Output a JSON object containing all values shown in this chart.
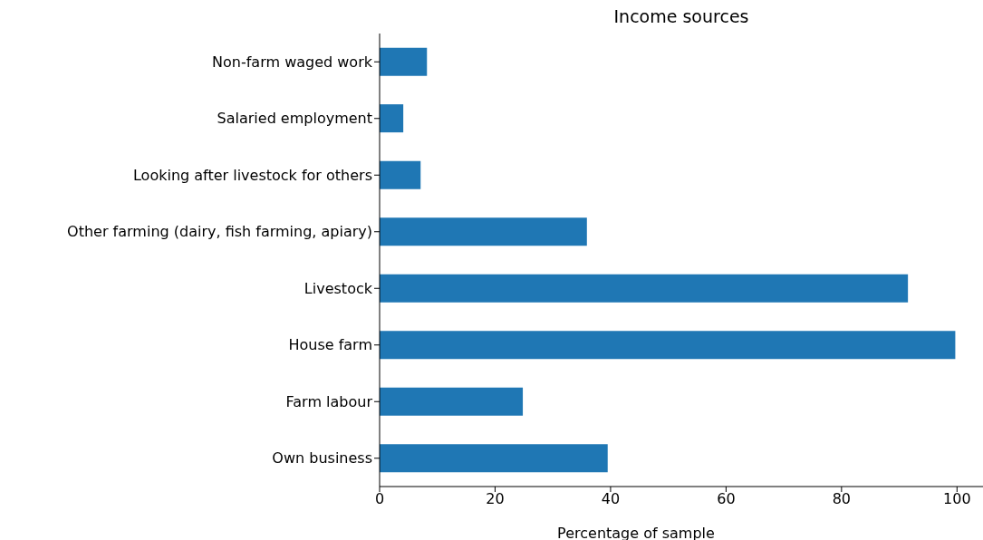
{
  "chart_data": {
    "type": "bar",
    "orientation": "horizontal",
    "title": "Income sources",
    "xlabel": "Percentage of sample",
    "categories": [
      "Non-farm waged work",
      "Salaried employment",
      "Looking after livestock for others",
      "Other farming (dairy, fish farming, apiary)",
      "Livestock",
      "House farm",
      "Farm labour",
      "Own business"
    ],
    "values": [
      8.2,
      4.1,
      7.1,
      35.9,
      91.5,
      99.7,
      24.8,
      39.5
    ],
    "color": "#1f77b4",
    "xlim": [
      0,
      104.5
    ],
    "xticks": [
      0,
      20,
      40,
      60,
      80,
      100
    ],
    "grid": false,
    "legend": false
  }
}
